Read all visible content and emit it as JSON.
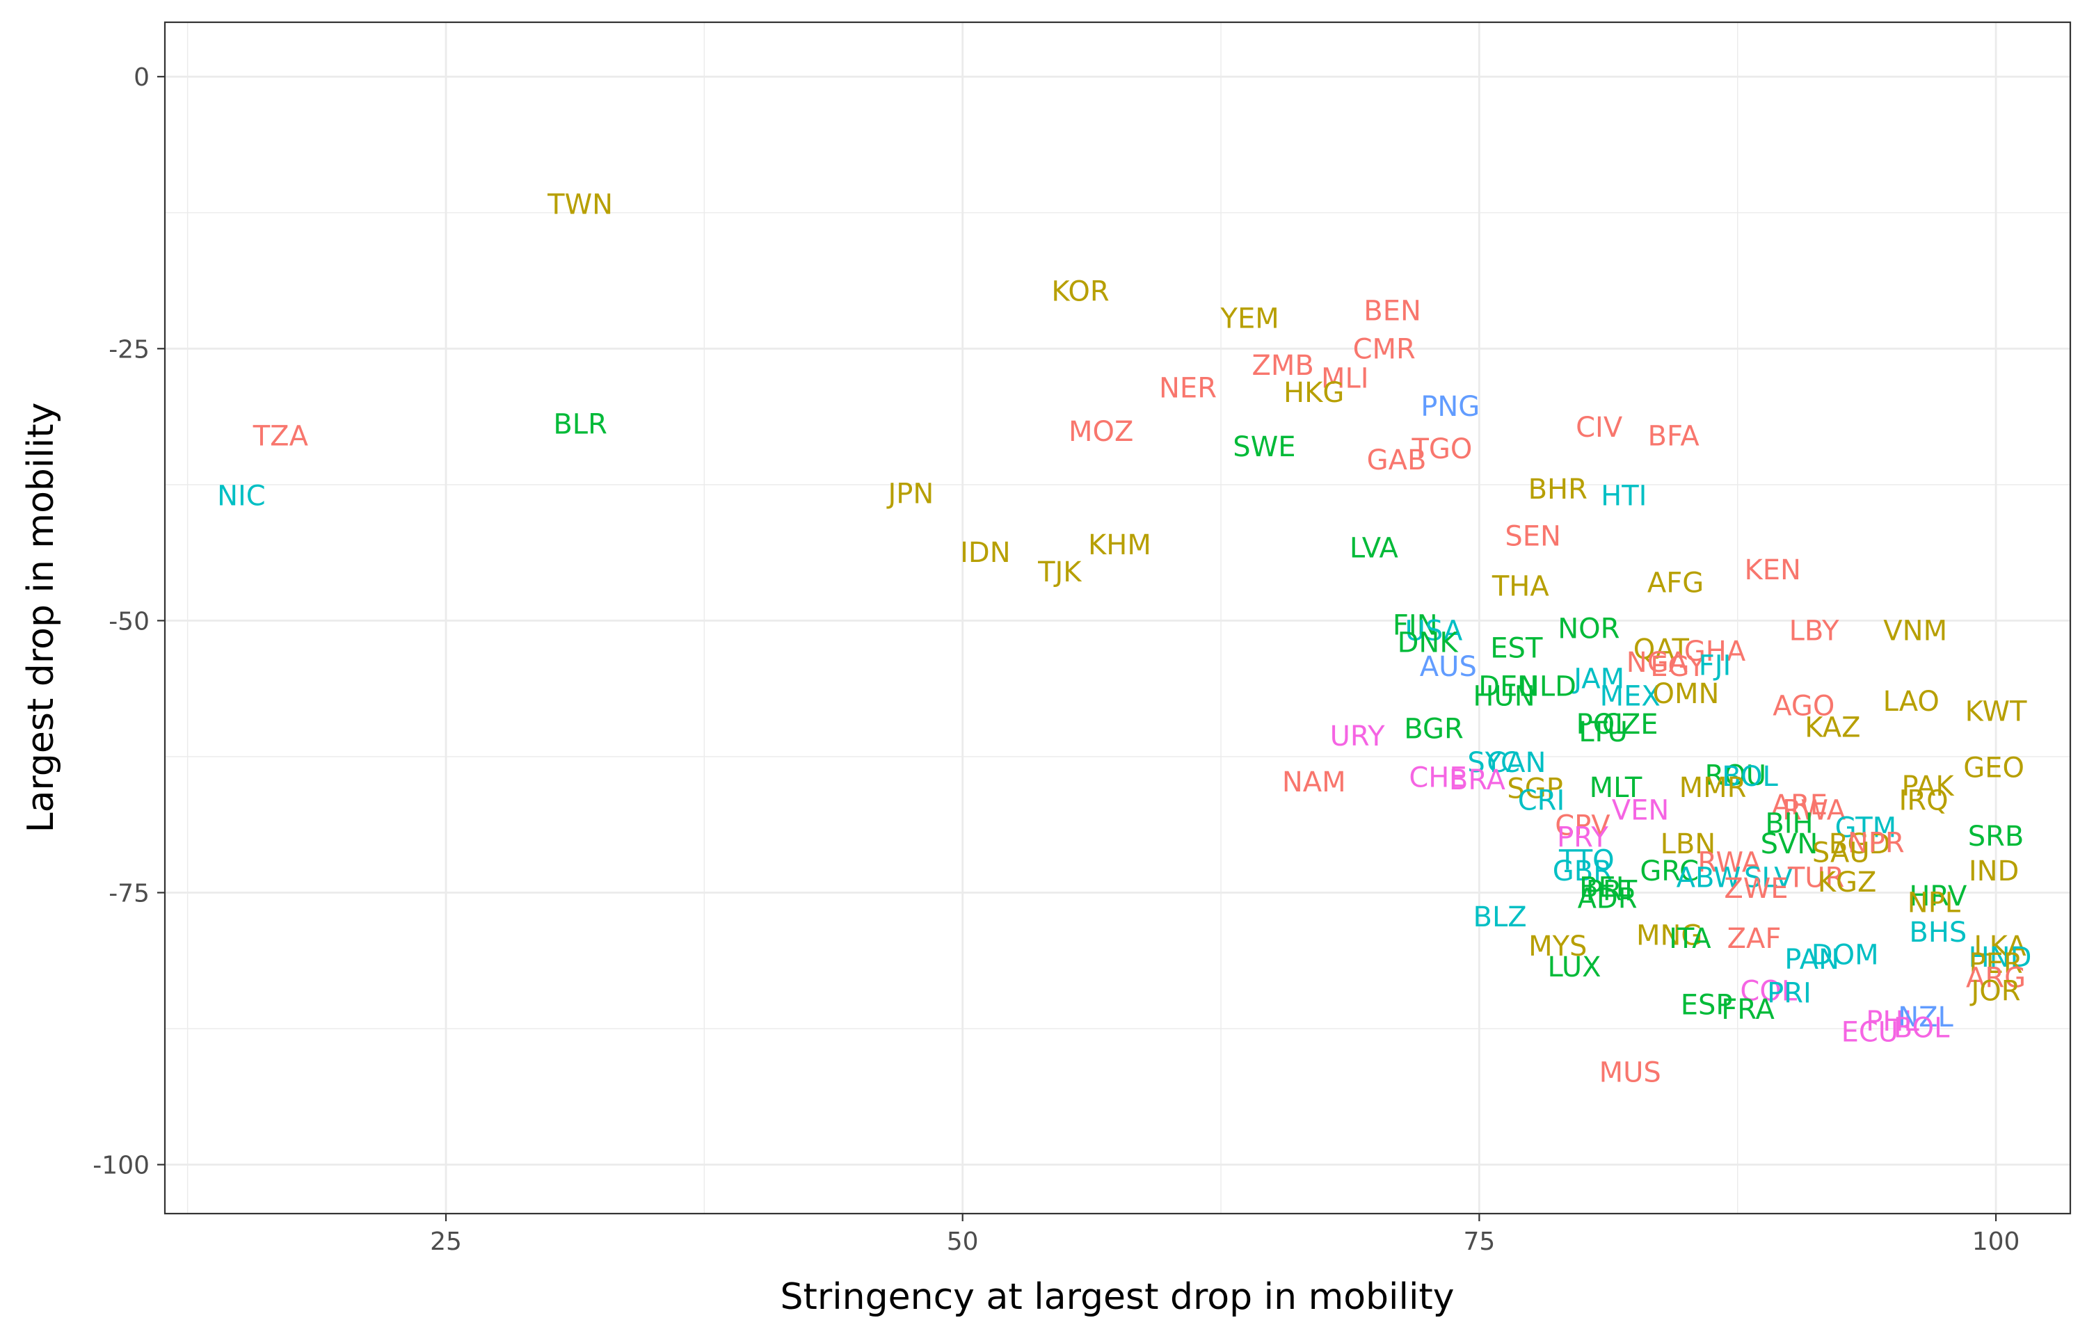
{
  "chart_data": {
    "type": "scatter",
    "xlabel": "Stringency at largest drop in mobility",
    "ylabel": "Largest drop in mobility",
    "xlim": [
      11.4,
      103.6
    ],
    "ylim": [
      -104.5,
      5
    ],
    "xticks": [
      25,
      50,
      75,
      100
    ],
    "yticks": [
      0,
      -25,
      -50,
      -75,
      -100
    ],
    "grid": true,
    "legend": "none",
    "colors": {
      "red": "#F8766D",
      "olive": "#B79F00",
      "green": "#00BA38",
      "teal": "#00BFC4",
      "blue": "#619CFF",
      "pink": "#F564E3"
    },
    "points": [
      {
        "label": "TWN",
        "x": 31.5,
        "y": -11.7,
        "color": "olive"
      },
      {
        "label": "TZA",
        "x": 17.0,
        "y": -33.0,
        "color": "red"
      },
      {
        "label": "NIC",
        "x": 15.1,
        "y": -38.5,
        "color": "teal"
      },
      {
        "label": "BLR",
        "x": 31.5,
        "y": -31.9,
        "color": "green"
      },
      {
        "label": "KOR",
        "x": 55.7,
        "y": -19.7,
        "color": "olive"
      },
      {
        "label": "YEM",
        "x": 63.9,
        "y": -22.2,
        "color": "olive"
      },
      {
        "label": "BEN",
        "x": 70.8,
        "y": -21.5,
        "color": "red"
      },
      {
        "label": "CMR",
        "x": 70.4,
        "y": -25.0,
        "color": "red"
      },
      {
        "label": "ZMB",
        "x": 65.5,
        "y": -26.5,
        "color": "red"
      },
      {
        "label": "MLI",
        "x": 68.5,
        "y": -27.7,
        "color": "red"
      },
      {
        "label": "NER",
        "x": 60.9,
        "y": -28.6,
        "color": "red"
      },
      {
        "label": "HKG",
        "x": 67.0,
        "y": -29.0,
        "color": "olive"
      },
      {
        "label": "PNG",
        "x": 73.6,
        "y": -30.3,
        "color": "blue"
      },
      {
        "label": "MOZ",
        "x": 56.7,
        "y": -32.6,
        "color": "red"
      },
      {
        "label": "CIV",
        "x": 80.8,
        "y": -32.2,
        "color": "red"
      },
      {
        "label": "BFA",
        "x": 84.4,
        "y": -33.0,
        "color": "red"
      },
      {
        "label": "SWE",
        "x": 64.6,
        "y": -34.0,
        "color": "green"
      },
      {
        "label": "TGO",
        "x": 73.2,
        "y": -34.2,
        "color": "red"
      },
      {
        "label": "GAB",
        "x": 71.0,
        "y": -35.2,
        "color": "red"
      },
      {
        "label": "JPN",
        "x": 47.5,
        "y": -38.3,
        "color": "olive"
      },
      {
        "label": "BHR",
        "x": 78.8,
        "y": -37.9,
        "color": "olive"
      },
      {
        "label": "HTI",
        "x": 82.0,
        "y": -38.5,
        "color": "teal"
      },
      {
        "label": "IDN",
        "x": 51.1,
        "y": -43.7,
        "color": "olive"
      },
      {
        "label": "KHM",
        "x": 57.6,
        "y": -43.0,
        "color": "olive"
      },
      {
        "label": "TJK",
        "x": 54.7,
        "y": -45.5,
        "color": "olive"
      },
      {
        "label": "LVA",
        "x": 69.9,
        "y": -43.3,
        "color": "green"
      },
      {
        "label": "SEN",
        "x": 77.6,
        "y": -42.2,
        "color": "red"
      },
      {
        "label": "KEN",
        "x": 89.2,
        "y": -45.3,
        "color": "red"
      },
      {
        "label": "THA",
        "x": 77.0,
        "y": -46.8,
        "color": "olive"
      },
      {
        "label": "AFG",
        "x": 84.5,
        "y": -46.5,
        "color": "olive"
      },
      {
        "label": "FIN",
        "x": 71.9,
        "y": -50.4,
        "color": "green"
      },
      {
        "label": "USA",
        "x": 72.8,
        "y": -50.9,
        "color": "teal"
      },
      {
        "label": "DNK",
        "x": 72.5,
        "y": -52.0,
        "color": "green"
      },
      {
        "label": "NOR",
        "x": 80.3,
        "y": -50.7,
        "color": "green"
      },
      {
        "label": "LBY",
        "x": 91.2,
        "y": -50.9,
        "color": "red"
      },
      {
        "label": "VNM",
        "x": 96.1,
        "y": -50.9,
        "color": "olive"
      },
      {
        "label": "EST",
        "x": 76.8,
        "y": -52.5,
        "color": "green"
      },
      {
        "label": "QAT",
        "x": 83.8,
        "y": -52.6,
        "color": "olive"
      },
      {
        "label": "GHA",
        "x": 86.4,
        "y": -52.8,
        "color": "red"
      },
      {
        "label": "AUS",
        "x": 73.5,
        "y": -54.2,
        "color": "blue"
      },
      {
        "label": "NGA",
        "x": 83.6,
        "y": -53.8,
        "color": "red"
      },
      {
        "label": "EGY",
        "x": 84.6,
        "y": -54.2,
        "color": "red"
      },
      {
        "label": "FJI",
        "x": 86.4,
        "y": -54.1,
        "color": "teal"
      },
      {
        "label": "JAM",
        "x": 80.8,
        "y": -55.3,
        "color": "teal"
      },
      {
        "label": "DEU",
        "x": 76.4,
        "y": -56.0,
        "color": "green"
      },
      {
        "label": "NLD",
        "x": 78.3,
        "y": -56.0,
        "color": "green"
      },
      {
        "label": "MEX",
        "x": 82.3,
        "y": -56.9,
        "color": "teal"
      },
      {
        "label": "OMN",
        "x": 85.0,
        "y": -56.7,
        "color": "olive"
      },
      {
        "label": "HUN",
        "x": 76.2,
        "y": -56.9,
        "color": "green"
      },
      {
        "label": "AGO",
        "x": 90.7,
        "y": -57.8,
        "color": "red"
      },
      {
        "label": "LAO",
        "x": 95.9,
        "y": -57.4,
        "color": "olive"
      },
      {
        "label": "KWT",
        "x": 100.0,
        "y": -58.3,
        "color": "olive"
      },
      {
        "label": "POL",
        "x": 81.0,
        "y": -59.5,
        "color": "green"
      },
      {
        "label": "CZE",
        "x": 82.3,
        "y": -59.5,
        "color": "green"
      },
      {
        "label": "KAZ",
        "x": 92.1,
        "y": -59.8,
        "color": "olive"
      },
      {
        "label": "LTU",
        "x": 81.0,
        "y": -60.2,
        "color": "green"
      },
      {
        "label": "BGR",
        "x": 72.8,
        "y": -59.9,
        "color": "green"
      },
      {
        "label": "URY",
        "x": 69.1,
        "y": -60.6,
        "color": "pink"
      },
      {
        "label": "SYC",
        "x": 75.7,
        "y": -63.0,
        "color": "teal"
      },
      {
        "label": "CAN",
        "x": 76.8,
        "y": -63.0,
        "color": "teal"
      },
      {
        "label": "ROU",
        "x": 87.4,
        "y": -64.2,
        "color": "green"
      },
      {
        "label": "BOL",
        "x": 88.1,
        "y": -64.3,
        "color": "teal"
      },
      {
        "label": "GEO",
        "x": 99.9,
        "y": -63.5,
        "color": "olive"
      },
      {
        "label": "CHE",
        "x": 73.0,
        "y": -64.4,
        "color": "pink"
      },
      {
        "label": "BRA",
        "x": 74.9,
        "y": -64.6,
        "color": "pink"
      },
      {
        "label": "SGP",
        "x": 77.7,
        "y": -65.4,
        "color": "olive"
      },
      {
        "label": "NAM",
        "x": 67.0,
        "y": -64.8,
        "color": "red"
      },
      {
        "label": "MLT",
        "x": 81.6,
        "y": -65.3,
        "color": "green"
      },
      {
        "label": "MMR",
        "x": 86.3,
        "y": -65.3,
        "color": "olive"
      },
      {
        "label": "CRI",
        "x": 78.0,
        "y": -66.5,
        "color": "teal"
      },
      {
        "label": "ARE",
        "x": 90.5,
        "y": -66.9,
        "color": "red"
      },
      {
        "label": "PAK",
        "x": 96.7,
        "y": -65.2,
        "color": "olive"
      },
      {
        "label": "IRQ",
        "x": 96.5,
        "y": -66.5,
        "color": "olive"
      },
      {
        "label": "RWA",
        "x": 91.2,
        "y": -67.4,
        "color": "red"
      },
      {
        "label": "VEN",
        "x": 82.8,
        "y": -67.4,
        "color": "pink"
      },
      {
        "label": "CPV",
        "x": 80.0,
        "y": -68.8,
        "color": "red"
      },
      {
        "label": "BIH",
        "x": 90.0,
        "y": -68.6,
        "color": "green"
      },
      {
        "label": "GTM",
        "x": 93.7,
        "y": -69.0,
        "color": "teal"
      },
      {
        "label": "PRY",
        "x": 80.0,
        "y": -69.9,
        "color": "pink"
      },
      {
        "label": "SRB",
        "x": 100.0,
        "y": -69.8,
        "color": "green"
      },
      {
        "label": "SVN",
        "x": 90.0,
        "y": -70.5,
        "color": "green"
      },
      {
        "label": "BGD",
        "x": 93.4,
        "y": -70.5,
        "color": "olive"
      },
      {
        "label": "NPR",
        "x": 94.2,
        "y": -70.4,
        "color": "red"
      },
      {
        "label": "LBN",
        "x": 85.1,
        "y": -70.5,
        "color": "olive"
      },
      {
        "label": "SAU",
        "x": 92.5,
        "y": -71.3,
        "color": "olive"
      },
      {
        "label": "TTO",
        "x": 80.2,
        "y": -72.0,
        "color": "teal"
      },
      {
        "label": "RWA",
        "x": 87.1,
        "y": -72.2,
        "color": "red"
      },
      {
        "label": "GBR",
        "x": 80.0,
        "y": -73.0,
        "color": "teal"
      },
      {
        "label": "GRC",
        "x": 84.2,
        "y": -73.0,
        "color": "green"
      },
      {
        "label": "ABW",
        "x": 86.1,
        "y": -73.6,
        "color": "teal"
      },
      {
        "label": "SLV",
        "x": 89.0,
        "y": -73.6,
        "color": "teal"
      },
      {
        "label": "TUR",
        "x": 91.3,
        "y": -73.6,
        "color": "red"
      },
      {
        "label": "KGZ",
        "x": 92.8,
        "y": -74.0,
        "color": "olive"
      },
      {
        "label": "IND",
        "x": 99.9,
        "y": -73.0,
        "color": "olive"
      },
      {
        "label": "ZWE",
        "x": 88.4,
        "y": -74.6,
        "color": "red"
      },
      {
        "label": "PRT",
        "x": 81.4,
        "y": -74.8,
        "color": "green"
      },
      {
        "label": "BEL",
        "x": 81.1,
        "y": -74.5,
        "color": "green"
      },
      {
        "label": "ADR",
        "x": 81.2,
        "y": -75.5,
        "color": "green"
      },
      {
        "label": "HRV",
        "x": 97.2,
        "y": -75.3,
        "color": "green"
      },
      {
        "label": "NPL",
        "x": 97.0,
        "y": -75.9,
        "color": "olive"
      },
      {
        "label": "BLZ",
        "x": 76.0,
        "y": -77.2,
        "color": "teal"
      },
      {
        "label": "BHS",
        "x": 97.2,
        "y": -78.6,
        "color": "teal"
      },
      {
        "label": "MNG",
        "x": 84.2,
        "y": -78.9,
        "color": "olive"
      },
      {
        "label": "ITA",
        "x": 85.2,
        "y": -79.2,
        "color": "green"
      },
      {
        "label": "ZAF",
        "x": 88.3,
        "y": -79.2,
        "color": "red"
      },
      {
        "label": "MYS",
        "x": 78.8,
        "y": -79.9,
        "color": "olive"
      },
      {
        "label": "LKA",
        "x": 100.2,
        "y": -79.9,
        "color": "olive"
      },
      {
        "label": "DOM",
        "x": 92.7,
        "y": -80.7,
        "color": "teal"
      },
      {
        "label": "HND",
        "x": 100.2,
        "y": -80.9,
        "color": "teal"
      },
      {
        "label": "PAN",
        "x": 91.1,
        "y": -81.1,
        "color": "teal"
      },
      {
        "label": "PER",
        "x": 100.0,
        "y": -81.5,
        "color": "olive"
      },
      {
        "label": "LUX",
        "x": 79.6,
        "y": -81.8,
        "color": "green"
      },
      {
        "label": "ARG",
        "x": 100.0,
        "y": -82.8,
        "color": "red"
      },
      {
        "label": "JOR",
        "x": 100.0,
        "y": -84.0,
        "color": "olive"
      },
      {
        "label": "COL",
        "x": 89.0,
        "y": -84.0,
        "color": "pink"
      },
      {
        "label": "PRI",
        "x": 90.0,
        "y": -84.2,
        "color": "teal"
      },
      {
        "label": "ESP",
        "x": 86.0,
        "y": -85.3,
        "color": "green"
      },
      {
        "label": "FRA",
        "x": 88.0,
        "y": -85.7,
        "color": "green"
      },
      {
        "label": "PHL",
        "x": 95.0,
        "y": -86.8,
        "color": "pink"
      },
      {
        "label": "NZL",
        "x": 96.6,
        "y": -86.4,
        "color": "blue"
      },
      {
        "label": "BOL",
        "x": 96.4,
        "y": -87.4,
        "color": "pink"
      },
      {
        "label": "ECU",
        "x": 93.9,
        "y": -87.8,
        "color": "pink"
      },
      {
        "label": "MUS",
        "x": 82.3,
        "y": -91.5,
        "color": "red"
      }
    ]
  }
}
